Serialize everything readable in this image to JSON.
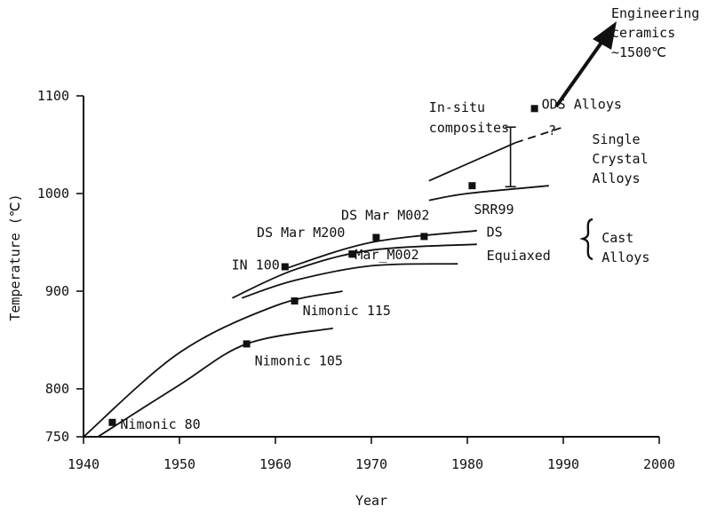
{
  "chart_data": {
    "type": "scatter",
    "title": "",
    "xlabel": "Year",
    "ylabel": "Temperature (℃)",
    "xlim": [
      1940,
      2000
    ],
    "ylim": [
      750,
      1100
    ],
    "x_ticks": [
      "1940",
      "1950",
      "1960",
      "1970",
      "1980",
      "1990",
      "2000"
    ],
    "y_ticks": [
      "750",
      "800",
      "900",
      "1000",
      "1100"
    ],
    "grid": false,
    "legend": "none",
    "points": [
      {
        "label": "Nimonic 80",
        "x": 1943,
        "y": 765
      },
      {
        "label": "Nimonic 105",
        "x": 1957,
        "y": 846
      },
      {
        "label": "Nimonic 115",
        "x": 1962,
        "y": 890
      },
      {
        "label": "IN 100",
        "x": 1961,
        "y": 925
      },
      {
        "label": "DS Mar M200",
        "x": 1968,
        "y": 938
      },
      {
        "label": "Mar_M002",
        "x": 1968,
        "y": 938
      },
      {
        "label": "DS Mar M002",
        "x": 1970.5,
        "y": 955
      },
      {
        "label": "",
        "x": 1975.5,
        "y": 956
      },
      {
        "label": "SRR99",
        "x": 1980.5,
        "y": 1008
      },
      {
        "label": "ODS Alloys",
        "x": 1987,
        "y": 1087
      }
    ],
    "curves": [
      {
        "name": "",
        "points": [
          [
            1940,
            750
          ],
          [
            1950,
            837
          ],
          [
            1960,
            885
          ],
          [
            1967,
            900
          ]
        ]
      },
      {
        "name": "",
        "points": [
          [
            1941.5,
            750
          ],
          [
            1950,
            804
          ],
          [
            1957,
            846
          ],
          [
            1966,
            862
          ]
        ]
      },
      {
        "name": "",
        "points": [
          [
            1955.5,
            893
          ],
          [
            1962,
            922
          ],
          [
            1970,
            942
          ],
          [
            1981,
            948
          ]
        ]
      },
      {
        "name": "",
        "points": [
          [
            1956.5,
            893
          ],
          [
            1962,
            911
          ],
          [
            1970,
            926
          ],
          [
            1979,
            928
          ]
        ]
      },
      {
        "name": "",
        "points": [
          [
            1961,
            923
          ],
          [
            1970,
            950
          ],
          [
            1981,
            962
          ]
        ]
      },
      {
        "name": "",
        "points": [
          [
            1976,
            1013
          ],
          [
            1985,
            1052
          ]
        ]
      },
      {
        "name": "",
        "points": [
          [
            1976,
            993
          ],
          [
            1980,
            1000
          ],
          [
            1988.5,
            1008
          ]
        ]
      }
    ],
    "projection": {
      "name": "",
      "points": [
        [
          1985,
          1052
        ],
        [
          1990,
          1068
        ]
      ],
      "end_label": "?"
    },
    "error_bar": {
      "x": 1984.5,
      "y_low": 1007,
      "y_high": 1068
    },
    "annotations": [
      {
        "id": "in-situ",
        "lines": [
          "In-situ",
          "composites"
        ],
        "x": 1976,
        "y": 1076
      },
      {
        "id": "single-crystal",
        "lines": [
          "Single",
          "Crystal",
          "Alloys"
        ],
        "x": 1993,
        "y": 1051
      },
      {
        "id": "ds",
        "lines": [
          "DS"
        ],
        "x": 1982,
        "y": 956
      },
      {
        "id": "equiaxed",
        "lines": [
          "Equiaxed"
        ],
        "x": 1982,
        "y": 932
      },
      {
        "id": "cast-alloys",
        "lines": [
          "Cast",
          "Alloys"
        ],
        "x": 1994,
        "y": 950
      },
      {
        "id": "ceramics",
        "lines": [
          "Engineering",
          "ceramics",
          "~1500℃"
        ],
        "x": 1995,
        "y": 1200
      }
    ]
  }
}
